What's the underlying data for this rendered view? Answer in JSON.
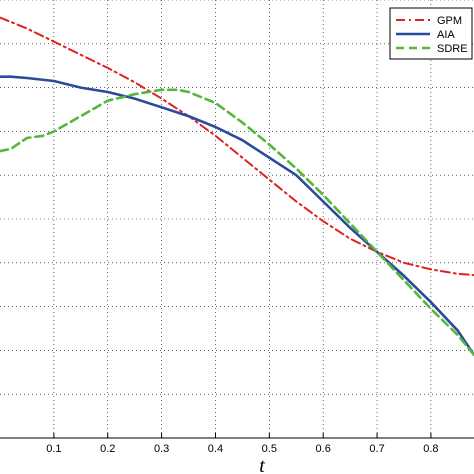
{
  "chart_data": {
    "type": "line",
    "xlabel": "t",
    "xlim": [
      0.0,
      0.88
    ],
    "ylim": [
      0.0,
      1.0
    ],
    "x_ticks": [
      "0.1",
      "0.2",
      "0.3",
      "0.4",
      "0.5",
      "0.6",
      "0.7",
      "0.8"
    ],
    "x_tick_values": [
      0.1,
      0.2,
      0.3,
      0.4,
      0.5,
      0.6,
      0.7,
      0.8
    ],
    "y_grid_values": [
      0.0,
      0.1,
      0.2,
      0.3,
      0.4,
      0.5,
      0.6,
      0.7,
      0.8,
      0.9,
      1.0
    ],
    "grid": true,
    "legend_position": "top-right",
    "series": [
      {
        "name": "GPM",
        "color": "#e0221f",
        "dash": "dash-dot",
        "x": [
          0.0,
          0.05,
          0.1,
          0.15,
          0.2,
          0.25,
          0.3,
          0.35,
          0.4,
          0.45,
          0.5,
          0.55,
          0.6,
          0.65,
          0.7,
          0.75,
          0.8,
          0.85,
          0.88
        ],
        "y": [
          0.96,
          0.935,
          0.905,
          0.875,
          0.845,
          0.812,
          0.775,
          0.735,
          0.69,
          0.64,
          0.59,
          0.54,
          0.495,
          0.455,
          0.425,
          0.4,
          0.385,
          0.375,
          0.372
        ]
      },
      {
        "name": "AIA",
        "color": "#2a4a9c",
        "dash": "solid",
        "x": [
          0.0,
          0.02,
          0.05,
          0.1,
          0.15,
          0.2,
          0.25,
          0.3,
          0.35,
          0.4,
          0.45,
          0.5,
          0.55,
          0.6,
          0.65,
          0.7,
          0.75,
          0.8,
          0.85,
          0.88
        ],
        "y": [
          0.825,
          0.825,
          0.822,
          0.815,
          0.8,
          0.79,
          0.775,
          0.755,
          0.735,
          0.71,
          0.68,
          0.64,
          0.6,
          0.54,
          0.48,
          0.425,
          0.37,
          0.31,
          0.245,
          0.19
        ]
      },
      {
        "name": "SDRE",
        "color": "#55b63a",
        "dash": "dashed",
        "x": [
          0.0,
          0.02,
          0.05,
          0.08,
          0.1,
          0.15,
          0.2,
          0.25,
          0.3,
          0.33,
          0.35,
          0.4,
          0.45,
          0.5,
          0.55,
          0.6,
          0.65,
          0.7,
          0.75,
          0.8,
          0.85,
          0.88
        ],
        "y": [
          0.655,
          0.66,
          0.685,
          0.69,
          0.7,
          0.735,
          0.77,
          0.785,
          0.795,
          0.795,
          0.79,
          0.765,
          0.72,
          0.67,
          0.615,
          0.555,
          0.49,
          0.425,
          0.36,
          0.295,
          0.235,
          0.19
        ]
      }
    ]
  }
}
